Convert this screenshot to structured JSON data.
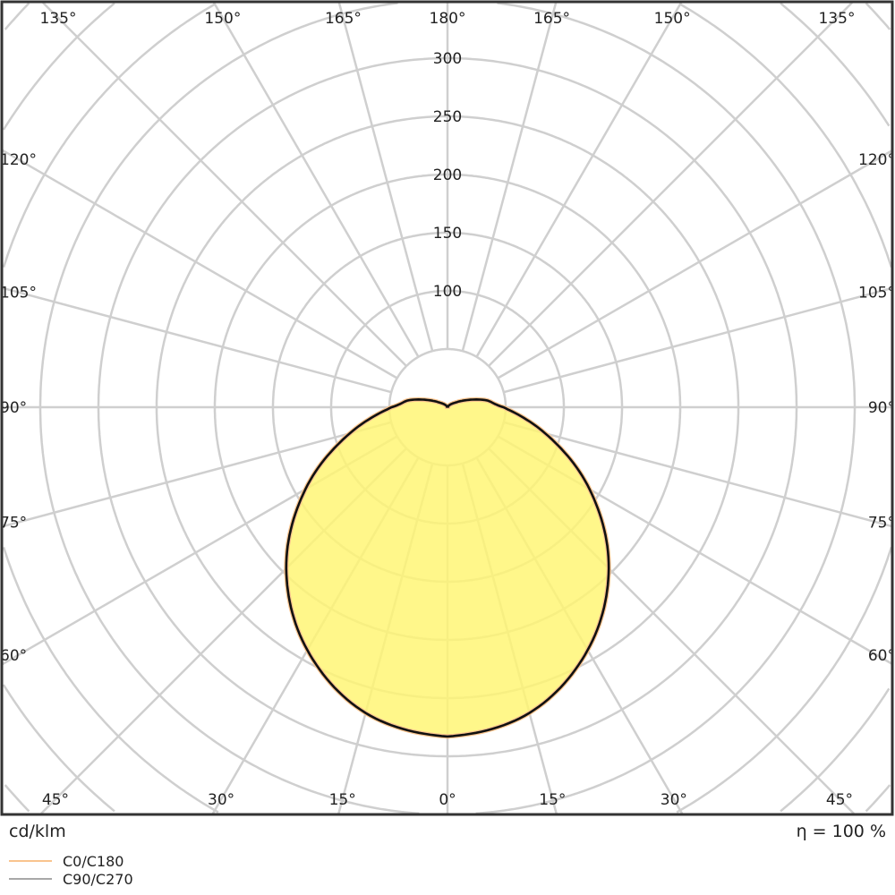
{
  "chart_data": {
    "type": "polar",
    "unit_label": "cd/klm",
    "efficiency_label": "η = 100 %",
    "radial_ticks": [
      100,
      150,
      200,
      250,
      300
    ],
    "radial_grid_step": 50,
    "angle_grid_step_deg": 15,
    "angle_labels": {
      "top": [
        "135°",
        "150°",
        "165°",
        "180°",
        "165°",
        "150°",
        "135°"
      ],
      "left": [
        "120°",
        "105°",
        "90°",
        "75°",
        "60°"
      ],
      "right": [
        "120°",
        "105°",
        "90°",
        "75°",
        "60°"
      ],
      "bottom": [
        "45°",
        "30°",
        "15°",
        "0°",
        "15°",
        "30°",
        "45°"
      ]
    },
    "angles_deg": [
      0,
      15,
      30,
      45,
      60,
      75,
      90,
      100,
      110,
      120,
      135,
      150,
      165,
      180
    ],
    "series": [
      {
        "name": "C0/C180",
        "color": "#f9c48e",
        "values": [
          283,
          272,
          241,
          196,
          141,
          87,
          48,
          34,
          18,
          8,
          3,
          1,
          0.5,
          0
        ]
      },
      {
        "name": "C90/C270",
        "color": "#a8a8a8",
        "values": [
          283,
          272,
          241,
          196,
          141,
          87,
          48,
          34,
          18,
          8,
          3,
          1,
          0.5,
          0
        ]
      }
    ],
    "fill_color": "#fff570",
    "outline_color": "#111111",
    "grid": true,
    "legend_position": "bottom-left"
  }
}
